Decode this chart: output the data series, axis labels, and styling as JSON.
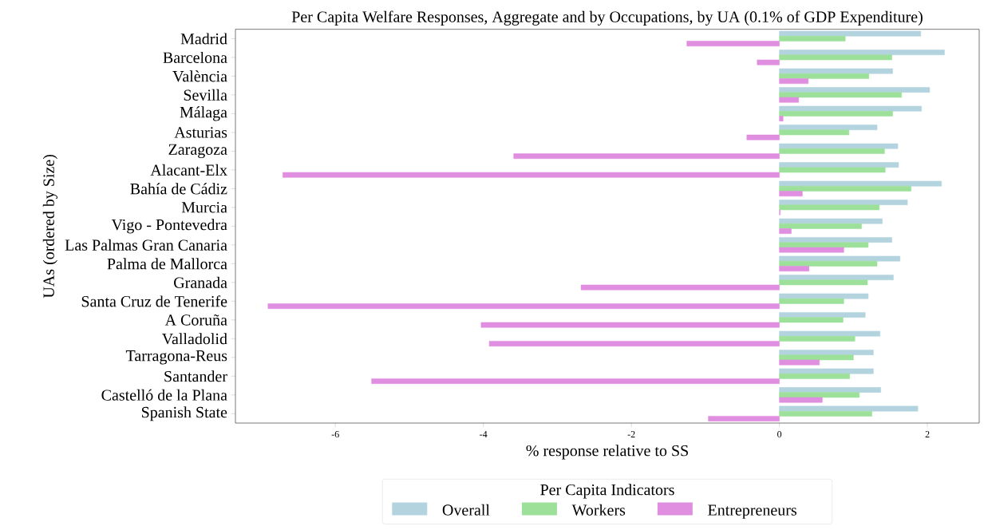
{
  "chart_data": {
    "type": "bar",
    "orientation": "horizontal",
    "title": "Per Capita Welfare Responses, Aggregate and by Occupations, by UA (0.1% of GDP Expenditure)",
    "xlabel": "% response relative to SS",
    "ylabel": "UAs (ordered by Size)",
    "legend_title": "Per Capita Indicators",
    "categories": [
      "Madrid",
      "Barcelona",
      "València",
      "Sevilla",
      "Málaga",
      "Asturias",
      "Zaragoza",
      "Alacant-Elx",
      "Bahía de Cádiz",
      "Murcia",
      "Vigo - Pontevedra",
      "Las Palmas Gran Canaria",
      "Palma de Mallorca",
      "Granada",
      "Santa Cruz de Tenerife",
      "A Coruña",
      "Valladolid",
      "Tarragona-Reus",
      "Santander",
      "Castelló de la Plana",
      "Spanish State"
    ],
    "series": [
      {
        "name": "Overall",
        "color": "#b3d4de",
        "values": [
          1.91,
          2.23,
          1.53,
          2.03,
          1.92,
          1.32,
          1.6,
          1.61,
          2.19,
          1.73,
          1.39,
          1.52,
          1.63,
          1.54,
          1.2,
          1.16,
          1.36,
          1.27,
          1.27,
          1.37,
          1.87
        ]
      },
      {
        "name": "Workers",
        "color": "#9de09a",
        "values": [
          0.89,
          1.52,
          1.21,
          1.65,
          1.53,
          0.94,
          1.42,
          1.43,
          1.78,
          1.35,
          1.11,
          1.2,
          1.32,
          1.19,
          0.87,
          0.86,
          1.02,
          1.0,
          0.95,
          1.08,
          1.25
        ]
      },
      {
        "name": "Entrepreneurs",
        "color": "#e08ee0",
        "values": [
          -1.25,
          -0.3,
          0.39,
          0.26,
          0.05,
          -0.44,
          -3.59,
          -6.71,
          0.31,
          0.01,
          0.16,
          0.87,
          0.4,
          -2.68,
          -6.91,
          -4.03,
          -3.92,
          0.54,
          -5.51,
          0.58,
          -0.96
        ]
      }
    ],
    "xlim": [
      -7.35,
      2.7
    ],
    "xticks": [
      -6,
      -4,
      -2,
      0,
      2
    ],
    "grid": false,
    "legend": "bottom"
  }
}
